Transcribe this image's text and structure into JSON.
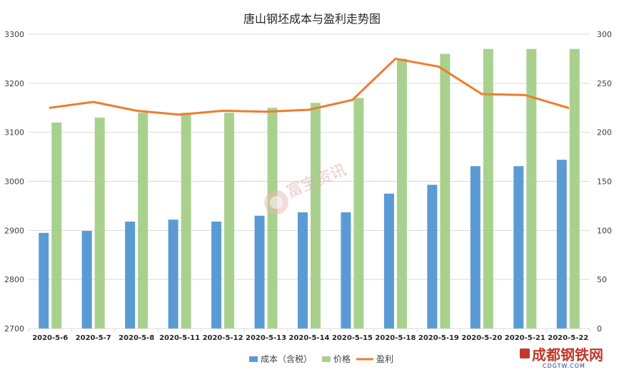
{
  "chart_data": {
    "type": "bar",
    "title": "唐山钢坯成本与盈利走势图",
    "categories": [
      "2020-5-6",
      "2020-5-7",
      "2020-5-8",
      "2020-5-11",
      "2020-5-12",
      "2020-5-13",
      "2020-5-14",
      "2020-5-15",
      "2020-5-18",
      "2020-5-19",
      "2020-5-20",
      "2020-5-21",
      "2020-5-22"
    ],
    "series": [
      {
        "name": "成本（含税）",
        "type": "bar",
        "axis": "left",
        "color": "#5b9bd5",
        "values": [
          2895,
          2899,
          2918,
          2922,
          2918,
          2930,
          2937,
          2937,
          2975,
          2993,
          3031,
          3031,
          3044
        ]
      },
      {
        "name": "价格",
        "type": "bar",
        "axis": "left",
        "color": "#a9d18e",
        "values": [
          3120,
          3130,
          3140,
          3140,
          3140,
          3150,
          3160,
          3170,
          3250,
          3260,
          3270,
          3270,
          3270
        ]
      },
      {
        "name": "盈利",
        "type": "line",
        "axis": "right",
        "color": "#ed7d31",
        "values": [
          225,
          231,
          222,
          218,
          222,
          221,
          223,
          233,
          275,
          267,
          239,
          238,
          225
        ]
      }
    ],
    "y_left": {
      "min": 2700,
      "max": 3300,
      "ticks": [
        2700,
        2800,
        2900,
        3000,
        3100,
        3200,
        3300
      ]
    },
    "y_right": {
      "min": 0,
      "max": 300,
      "ticks": [
        0,
        50,
        100,
        150,
        200,
        250,
        300
      ]
    },
    "grid": true,
    "legend": "bottom"
  },
  "watermark": {
    "text": "富宝资讯"
  },
  "logo": {
    "text": "成都钢铁网",
    "sub": "CDGTW.COM"
  }
}
